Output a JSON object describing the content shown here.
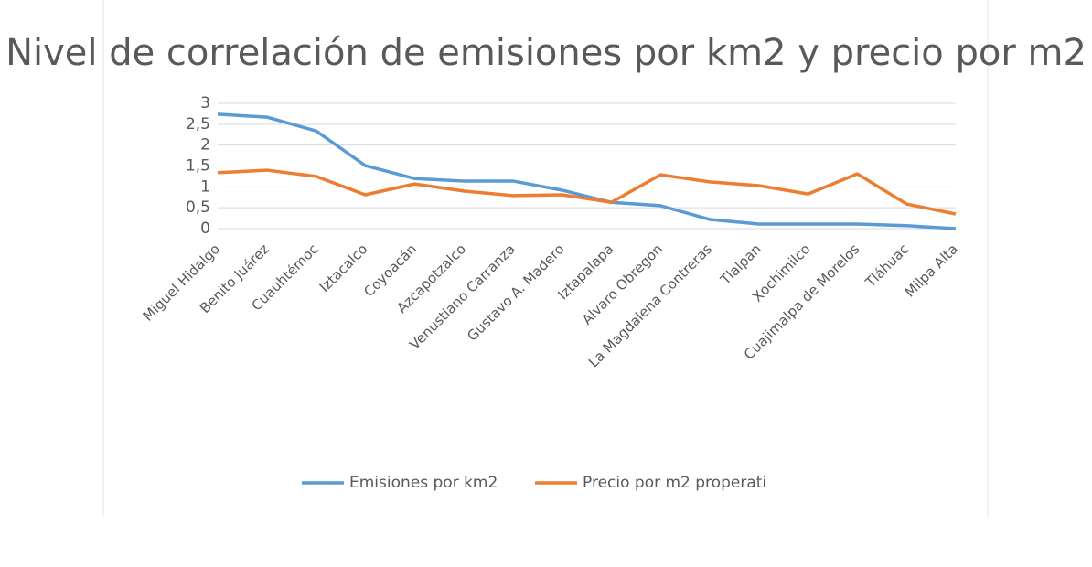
{
  "chart_data": {
    "type": "line",
    "title": "Nivel de correlación de emisiones por km2 y precio por m2",
    "categories": [
      "Miguel Hidalgo",
      "Benito Juárez",
      "Cuauhtémoc",
      "Iztacalco",
      "Coyoacán",
      "Azcapotzalco",
      "Venustiano Carranza",
      "Gustavo A. Madero",
      "Iztapalapa",
      "Álvaro Obregón",
      "La Magdalena Contreras",
      "Tlalpan",
      "Xochimilco",
      "Cuajimalpa de Morelos",
      "Tláhuac",
      "Milpa Alta"
    ],
    "series": [
      {
        "name": "Emisiones por km2",
        "color": "#5b9bd5",
        "values": [
          2.74,
          2.67,
          2.34,
          1.51,
          1.2,
          1.14,
          1.14,
          0.92,
          0.63,
          0.55,
          0.22,
          0.11,
          0.11,
          0.11,
          0.07,
          0.0
        ]
      },
      {
        "name": "Precio por m2 properati",
        "color": "#ed7d31",
        "values": [
          1.34,
          1.4,
          1.25,
          0.81,
          1.07,
          0.9,
          0.79,
          0.81,
          0.63,
          1.29,
          1.12,
          1.03,
          0.83,
          1.31,
          0.59,
          0.35
        ]
      }
    ],
    "ylim": [
      0,
      3
    ],
    "yticks": [
      0,
      {
        "value": 0.5,
        "label": "0,5"
      },
      1,
      {
        "value": 1.5,
        "label": "1,5"
      },
      2,
      {
        "value": 2.5,
        "label": "2,5"
      },
      3
    ],
    "grid": true,
    "legend": "bottom"
  }
}
